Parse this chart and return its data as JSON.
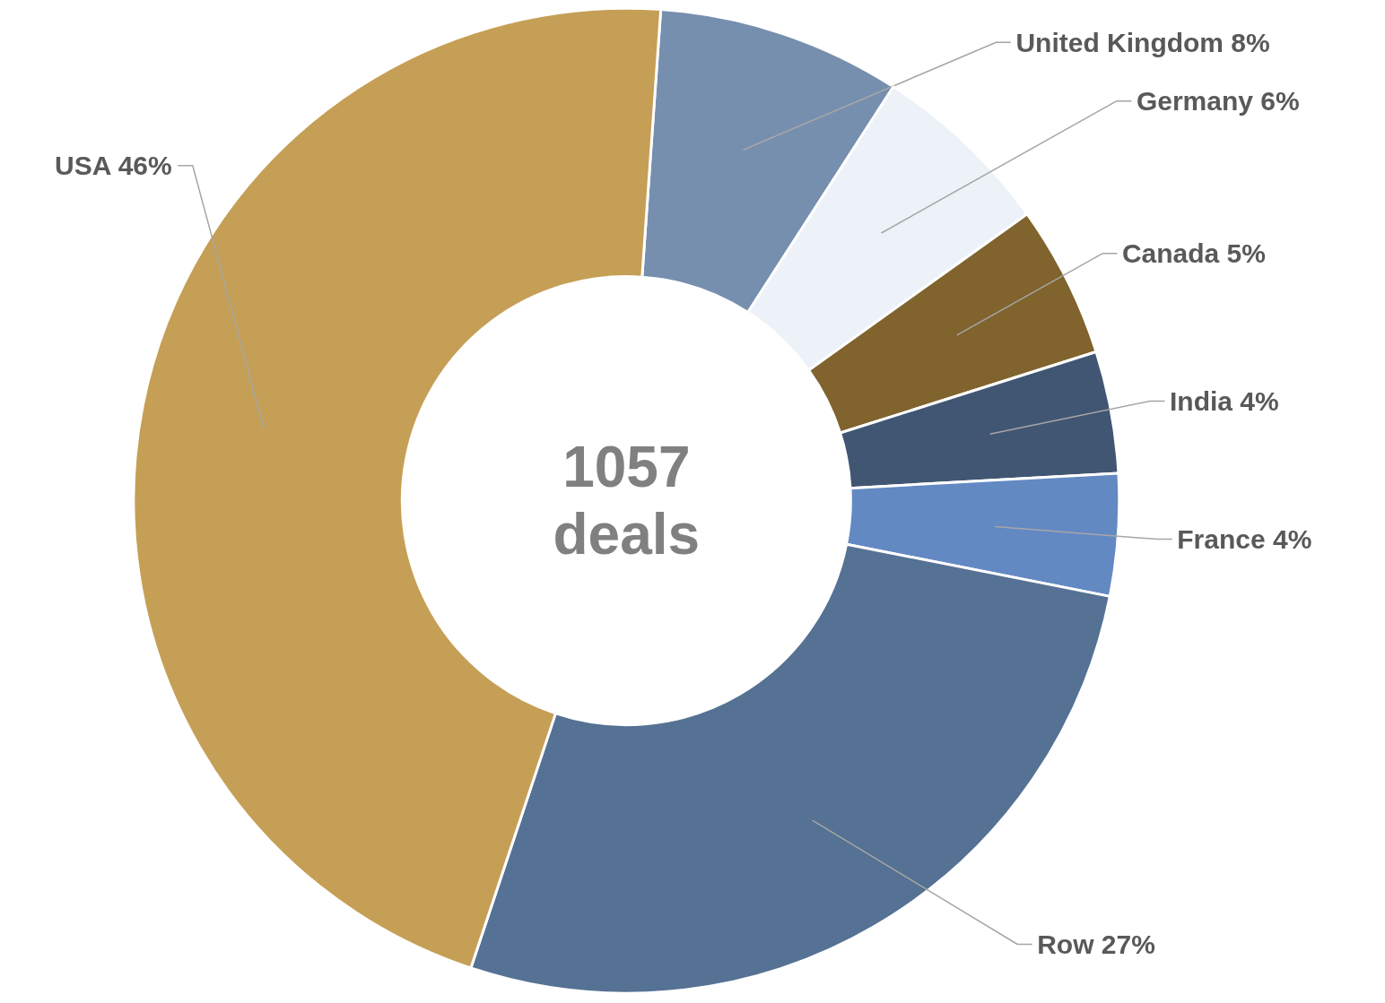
{
  "chart_data": {
    "type": "donut",
    "categories": [
      "United Kingdom",
      "Germany",
      "Canada",
      "India",
      "France",
      "Row",
      "USA"
    ],
    "values": [
      8,
      6,
      5,
      4,
      4,
      27,
      46
    ],
    "value_labels": [
      "8%",
      "6%",
      "5%",
      "4%",
      "4%",
      "27%",
      "46%"
    ],
    "colors": [
      "#768fae",
      "#edf1f8",
      "#80632d",
      "#415672",
      "#6389c3",
      "#557194",
      "#c59f55"
    ],
    "annotations": [
      "1057\ndeals"
    ]
  }
}
